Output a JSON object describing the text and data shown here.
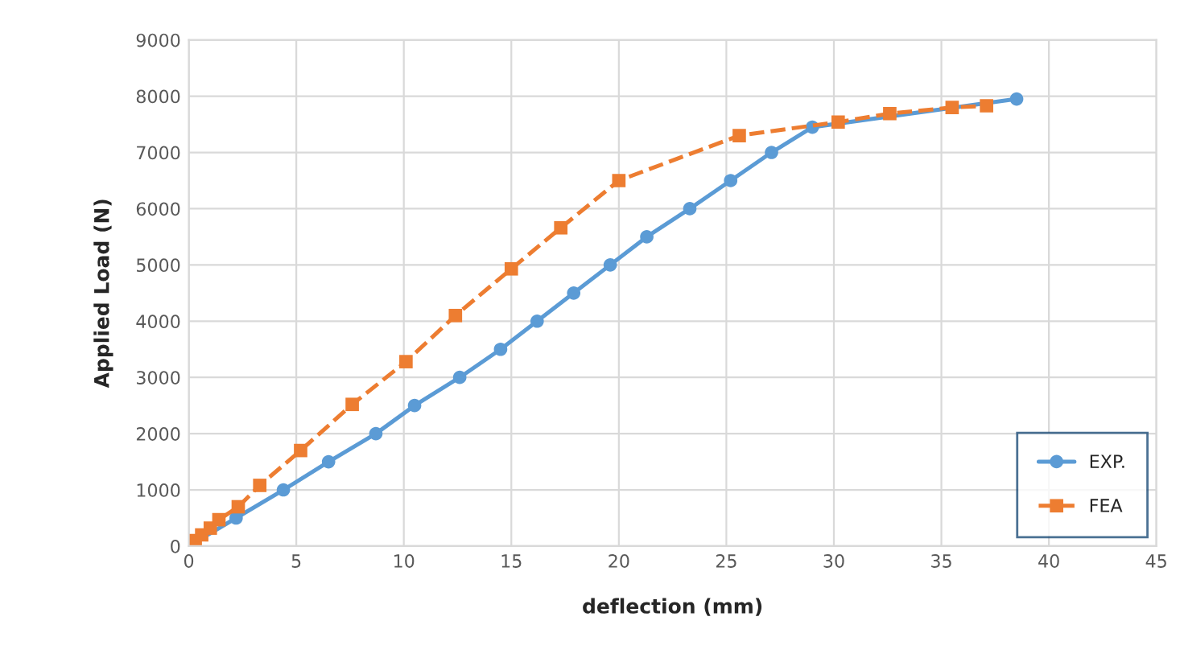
{
  "chart_data": {
    "type": "line",
    "xlabel": "deflection (mm)",
    "ylabel": "Applied Load (N)",
    "xlim": [
      0,
      45
    ],
    "xticks": [
      0,
      5,
      10,
      15,
      20,
      25,
      30,
      35,
      40,
      45
    ],
    "ylim": [
      0,
      9000
    ],
    "yticks": [
      0,
      1000,
      2000,
      3000,
      4000,
      5000,
      6000,
      7000,
      8000,
      9000
    ],
    "grid": true,
    "legend": "bottom right",
    "series": [
      {
        "name": "EXP.",
        "color": "#5b9bd5",
        "marker": "circle",
        "line_style": "solid",
        "x": [
          0,
          2.2,
          4.4,
          6.5,
          8.7,
          10.5,
          12.6,
          14.5,
          16.2,
          17.9,
          19.6,
          21.3,
          23.3,
          25.2,
          27.1,
          29.0,
          38.5
        ],
        "values": [
          0,
          500,
          1000,
          1500,
          2000,
          2500,
          3000,
          3500,
          4000,
          4500,
          5000,
          5500,
          6000,
          6500,
          7000,
          7450,
          7950
        ]
      },
      {
        "name": "FEA",
        "color": "#ed7d31",
        "marker": "square",
        "line_style": "dashed",
        "x": [
          0,
          0.3,
          0.6,
          1.0,
          1.4,
          2.3,
          3.3,
          5.2,
          7.6,
          10.1,
          12.4,
          15.0,
          17.3,
          20.0,
          25.6,
          30.2,
          32.6,
          35.5,
          37.1
        ],
        "values": [
          0,
          100,
          200,
          320,
          470,
          700,
          1080,
          1700,
          2520,
          3280,
          4100,
          4930,
          5660,
          6500,
          7300,
          7540,
          7690,
          7800,
          7830
        ]
      }
    ]
  }
}
